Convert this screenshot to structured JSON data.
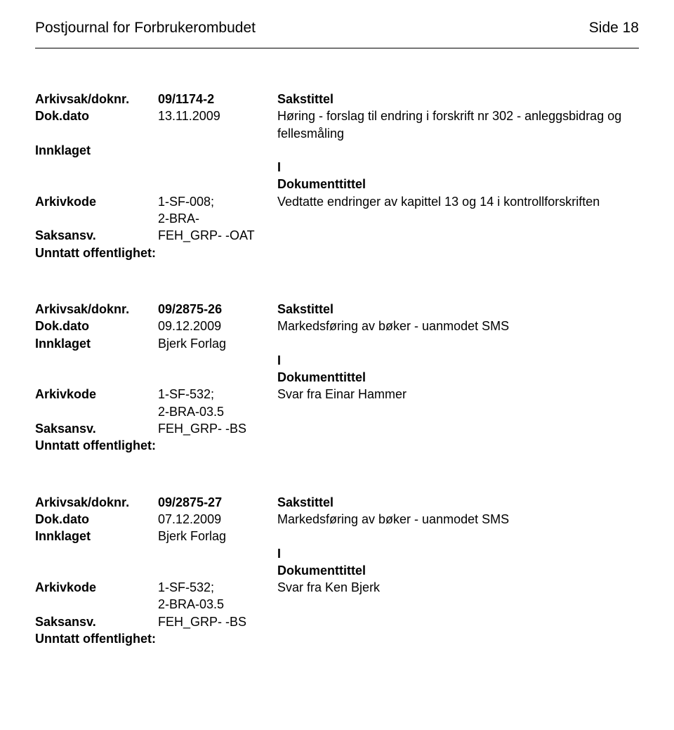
{
  "header": {
    "journal_title": "Postjournal for Forbrukerombudet",
    "page_side": "Side 18"
  },
  "labels": {
    "arkivsak": "Arkivsak/doknr.",
    "dokdato": "Dok.dato",
    "innklaget": "Innklaget",
    "arkivkode": "Arkivkode",
    "saksansv": "Saksansv.",
    "unntatt": "Unntatt offentlighet:",
    "sakstittel": "Sakstittel",
    "dokumenttittel": "Dokumenttittel",
    "i": "I"
  },
  "records": [
    {
      "arkivsak": "09/1174-2",
      "dokdato": "13.11.2009",
      "sakstittel_body": "Høring - forslag til endring i forskrift nr 302 - anleggsbidrag og fellesmåling",
      "innklaget": "",
      "arkivkode": "1-SF-008;\n2-BRA-",
      "dokumenttittel_body": "Vedtatte endringer av kapittel 13 og 14 i kontrollforskriften",
      "saksansv": "FEH_GRP- -OAT"
    },
    {
      "arkivsak": "09/2875-26",
      "dokdato": "09.12.2009",
      "sakstittel_body": "Markedsføring av bøker - uanmodet SMS",
      "innklaget": "Bjerk Forlag",
      "arkivkode": "1-SF-532;\n2-BRA-03.5",
      "dokumenttittel_body": "Svar fra Einar Hammer",
      "saksansv": "FEH_GRP- -BS"
    },
    {
      "arkivsak": "09/2875-27",
      "dokdato": "07.12.2009",
      "sakstittel_body": "Markedsføring av bøker - uanmodet SMS",
      "innklaget": "Bjerk Forlag",
      "arkivkode": "1-SF-532;\n2-BRA-03.5",
      "dokumenttittel_body": "Svar fra Ken Bjerk",
      "saksansv": "FEH_GRP- -BS"
    }
  ]
}
